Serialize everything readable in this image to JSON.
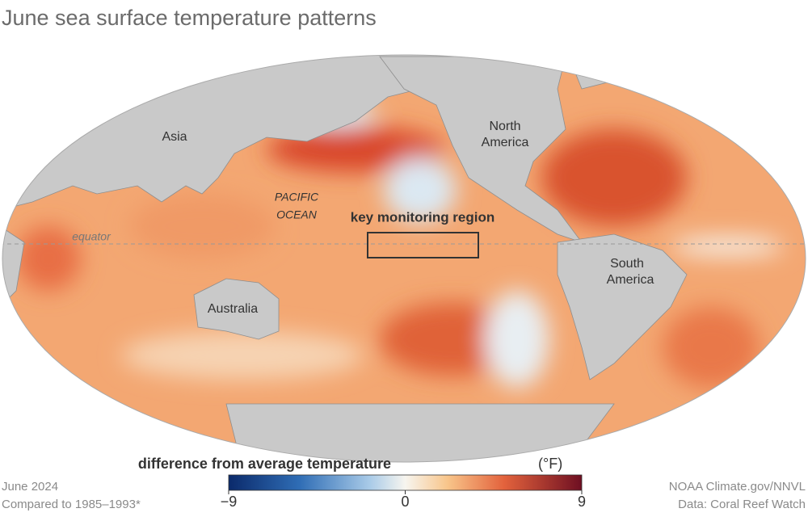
{
  "title": "June sea surface temperature patterns",
  "map": {
    "labels": {
      "asia": "Asia",
      "north": "North",
      "america_n": "America",
      "pacific": "PACIFIC",
      "ocean": "OCEAN",
      "region": "key monitoring region",
      "equator": "equator",
      "south": "South",
      "america_s": "America",
      "australia": "Australia"
    }
  },
  "colorbar": {
    "label": "difference from average temperature",
    "unit": "(°F)",
    "range": [
      -9,
      9
    ],
    "ticks": [
      {
        "value": -9,
        "label": "−9"
      },
      0,
      9
    ]
  },
  "footer": {
    "date": "June 2024",
    "baseline": "Compared to 1985–1993*",
    "credit": "NOAA Climate.gov/NNVL",
    "source": "Data: Coral Reef Watch"
  }
}
